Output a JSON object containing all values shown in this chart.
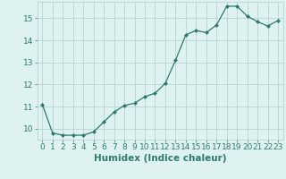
{
  "x": [
    0,
    1,
    2,
    3,
    4,
    5,
    6,
    7,
    8,
    9,
    10,
    11,
    12,
    13,
    14,
    15,
    16,
    17,
    18,
    19,
    20,
    21,
    22,
    23
  ],
  "y": [
    11.1,
    9.8,
    9.7,
    9.7,
    9.7,
    9.85,
    10.3,
    10.75,
    11.05,
    11.15,
    11.45,
    11.6,
    12.05,
    13.1,
    14.25,
    14.45,
    14.35,
    14.7,
    15.55,
    15.55,
    15.1,
    14.85,
    14.65,
    14.9
  ],
  "line_color": "#2e7b6e",
  "marker": "D",
  "marker_size": 2.0,
  "bg_color": "#dff2f2",
  "grid_color": "#b0cccc",
  "xlabel": "Humidex (Indice chaleur)",
  "xlim": [
    -0.5,
    23.5
  ],
  "ylim": [
    9.5,
    15.75
  ],
  "yticks": [
    10,
    11,
    12,
    13,
    14,
    15
  ],
  "xticks": [
    0,
    1,
    2,
    3,
    4,
    5,
    6,
    7,
    8,
    9,
    10,
    11,
    12,
    13,
    14,
    15,
    16,
    17,
    18,
    19,
    20,
    21,
    22,
    23
  ],
  "tick_label_fontsize": 6.5,
  "xlabel_fontsize": 7.5
}
